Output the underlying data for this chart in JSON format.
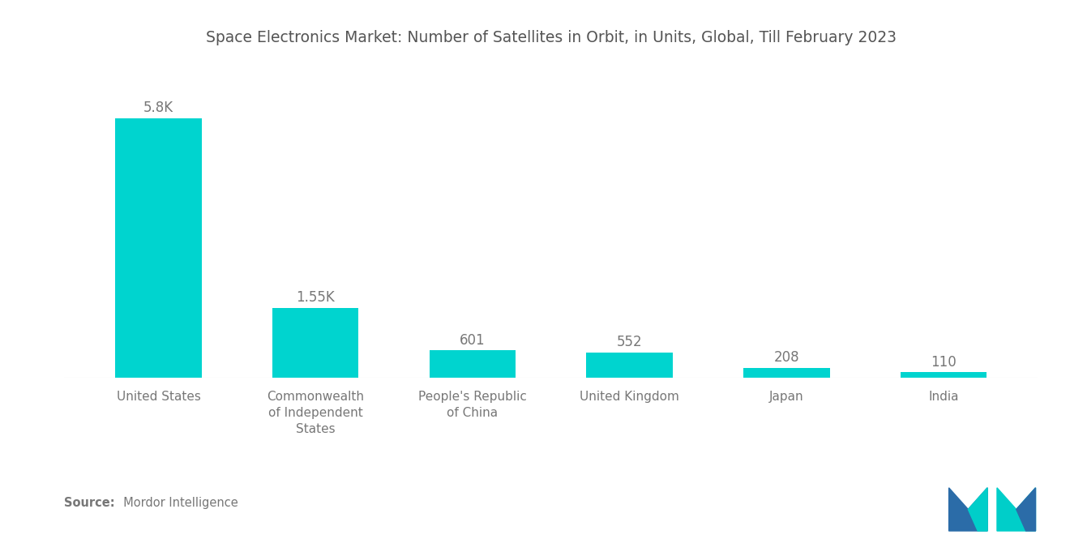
{
  "title": "Space Electronics Market: Number of Satellites in Orbit, in Units, Global, Till February 2023",
  "categories": [
    "United States",
    "Commonwealth\nof Independent\nStates",
    "People's Republic\nof China",
    "United Kingdom",
    "Japan",
    "India"
  ],
  "values": [
    5800,
    1550,
    601,
    552,
    208,
    110
  ],
  "labels": [
    "5.8K",
    "1.55K",
    "601",
    "552",
    "208",
    "110"
  ],
  "bar_color": "#00D4CF",
  "background_color": "#FFFFFF",
  "title_color": "#555555",
  "label_color": "#777777",
  "tick_label_color": "#777777",
  "source_label": "Source:",
  "source_text": "  Mordor Intelligence",
  "ylim": [
    0,
    7000
  ],
  "bar_width": 0.55,
  "logo_blue": "#2B6CA8",
  "logo_teal": "#00CEC9"
}
